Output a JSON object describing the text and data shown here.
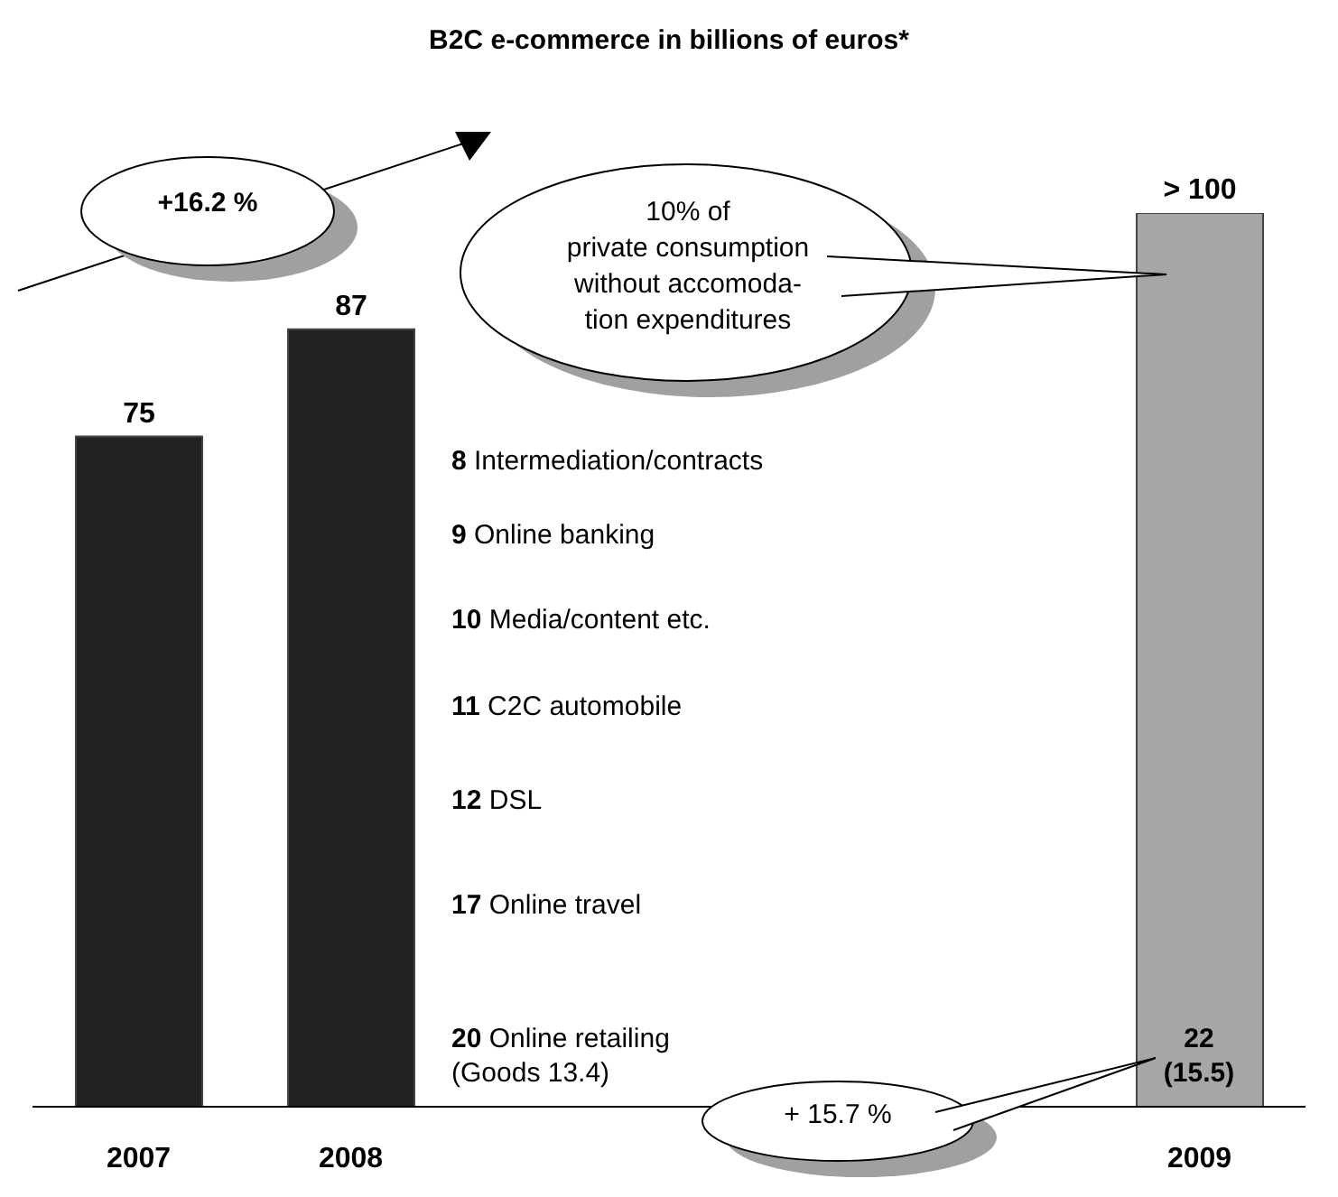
{
  "chart_data": {
    "type": "bar",
    "title": "B2C e-commerce in billions of euros*",
    "categories": [
      "2007",
      "2008",
      null,
      null,
      null,
      "2009"
    ],
    "values": [
      75,
      87,
      null,
      null,
      null,
      100
    ],
    "colors": [
      "#222222",
      "#222222",
      "#222222",
      "#222222",
      "#222222",
      "#a6a6a6"
    ],
    "value_labels": [
      "75",
      "87",
      null,
      null,
      null,
      "> 100"
    ],
    "tick_labels": "x",
    "grid": false,
    "legend": false,
    "annotations": [
      "+16.2 %",
      "10% of\nprivate consumption\nwithout accomoda-\ntion expenditures",
      "8 Intermediation/contracts",
      "9 Online banking",
      "10 Media/content etc.",
      "11 C2C automobile",
      "12 DSL",
      "17 Online travel",
      "20 Online retailing\n(Goods 13.4)",
      "22\n(15.5)",
      "+ 15.7 %"
    ]
  }
}
